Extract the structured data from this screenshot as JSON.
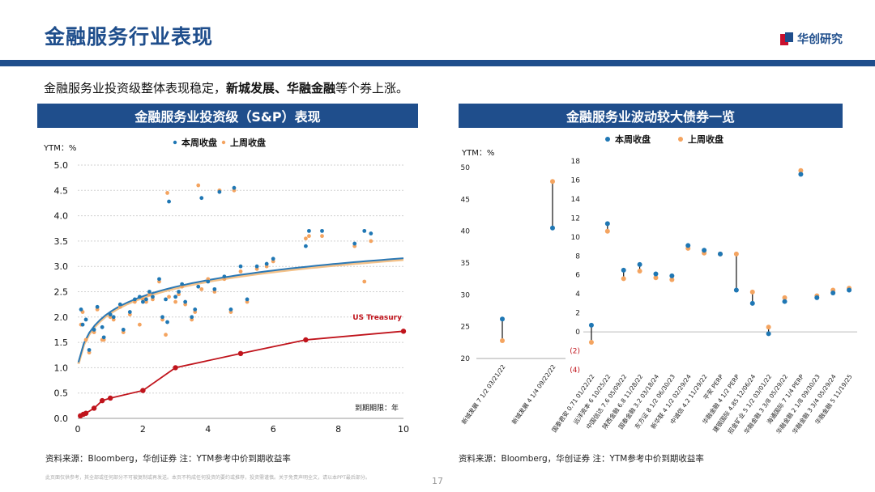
{
  "header": {
    "title": "金融服务行业表现",
    "logo_text": "华创研究",
    "subtitle_pre": "金融服务业投资级整体表现稳定，",
    "subtitle_bold": "新城发展、华融金融",
    "subtitle_post": "等个券上涨。"
  },
  "colors": {
    "accent": "#1f4e8c",
    "this_week": "#1f77b4",
    "last_week": "#f4a460",
    "treasury": "#c0141c"
  },
  "left_panel": {
    "title": "金融服务业投资级（S&P）表现",
    "source": "资料来源：Bloomberg，华创证券      注：YTM参考中价到期收益率"
  },
  "right_panel": {
    "title": "金融服务业波动较大债券一览",
    "source": "资料来源：Bloomberg，华创证券      注：YTM参考中价到期收益率"
  },
  "footer": {
    "disclaimer": "此页面仅供参考，其全部或任何部分不可被复制或再发送。本页不构成任何投资的要约或推荐，投资需谨慎。关于免责声明全文，请以本PPT最后部分。",
    "page": "17"
  },
  "chart_data": [
    {
      "type": "scatter",
      "title": "金融服务业投资级（S&P）表现",
      "ylabel": "YTM：%",
      "xlabel": "到期期限：年",
      "xlim": [
        0,
        10
      ],
      "ylim": [
        0,
        5
      ],
      "x_ticks": [
        "0",
        "2",
        "4",
        "6",
        "8",
        "10"
      ],
      "y_ticks": [
        "0.0",
        "0.5",
        "1.0",
        "1.5",
        "2.0",
        "2.5",
        "3.0",
        "3.5",
        "4.0",
        "4.5",
        "5.0"
      ],
      "legend": [
        "本周收盘",
        "上周收盘"
      ],
      "annotation": "US Treasury",
      "series": [
        {
          "name": "本周收盘",
          "points": [
            [
              0.1,
              2.15
            ],
            [
              0.15,
              1.85
            ],
            [
              0.25,
              1.95
            ],
            [
              0.35,
              1.35
            ],
            [
              0.5,
              1.75
            ],
            [
              0.6,
              2.2
            ],
            [
              0.75,
              1.8
            ],
            [
              0.8,
              1.6
            ],
            [
              1.0,
              2.05
            ],
            [
              1.1,
              2.0
            ],
            [
              1.3,
              2.25
            ],
            [
              1.4,
              1.75
            ],
            [
              1.6,
              2.1
            ],
            [
              1.75,
              2.35
            ],
            [
              1.9,
              2.4
            ],
            [
              2.0,
              2.3
            ],
            [
              2.1,
              2.35
            ],
            [
              2.2,
              2.5
            ],
            [
              2.3,
              2.4
            ],
            [
              2.5,
              2.75
            ],
            [
              2.6,
              2.0
            ],
            [
              2.7,
              2.35
            ],
            [
              2.75,
              1.9
            ],
            [
              2.8,
              4.28
            ],
            [
              3.0,
              2.4
            ],
            [
              3.1,
              2.5
            ],
            [
              3.2,
              2.65
            ],
            [
              3.3,
              2.3
            ],
            [
              3.5,
              2.0
            ],
            [
              3.6,
              2.15
            ],
            [
              3.7,
              2.6
            ],
            [
              3.8,
              4.35
            ],
            [
              4.0,
              2.7
            ],
            [
              4.2,
              2.55
            ],
            [
              4.35,
              4.47
            ],
            [
              4.5,
              2.8
            ],
            [
              4.7,
              2.15
            ],
            [
              4.8,
              4.55
            ],
            [
              5.0,
              3.0
            ],
            [
              5.2,
              2.35
            ],
            [
              5.5,
              3.0
            ],
            [
              5.8,
              3.05
            ],
            [
              6.0,
              3.15
            ],
            [
              7.0,
              3.4
            ],
            [
              7.1,
              3.7
            ],
            [
              7.5,
              3.7
            ],
            [
              8.5,
              3.45
            ],
            [
              8.8,
              3.7
            ],
            [
              9.0,
              3.65
            ]
          ]
        },
        {
          "name": "上周收盘",
          "points": [
            [
              0.1,
              1.85
            ],
            [
              0.15,
              2.1
            ],
            [
              0.25,
              1.55
            ],
            [
              0.35,
              1.3
            ],
            [
              0.5,
              1.7
            ],
            [
              0.6,
              2.15
            ],
            [
              0.75,
              1.55
            ],
            [
              0.8,
              1.55
            ],
            [
              1.0,
              2.0
            ],
            [
              1.1,
              1.95
            ],
            [
              1.3,
              2.2
            ],
            [
              1.4,
              1.7
            ],
            [
              1.6,
              2.05
            ],
            [
              1.75,
              2.3
            ],
            [
              1.9,
              1.85
            ],
            [
              2.0,
              2.35
            ],
            [
              2.1,
              2.3
            ],
            [
              2.2,
              2.45
            ],
            [
              2.3,
              2.35
            ],
            [
              2.5,
              2.7
            ],
            [
              2.6,
              1.95
            ],
            [
              2.7,
              1.65
            ],
            [
              2.75,
              4.45
            ],
            [
              2.8,
              2.4
            ],
            [
              3.0,
              2.3
            ],
            [
              3.1,
              2.45
            ],
            [
              3.2,
              2.6
            ],
            [
              3.3,
              2.25
            ],
            [
              3.5,
              1.95
            ],
            [
              3.6,
              2.1
            ],
            [
              3.7,
              4.6
            ],
            [
              3.8,
              2.55
            ],
            [
              4.0,
              2.75
            ],
            [
              4.2,
              2.5
            ],
            [
              4.35,
              4.5
            ],
            [
              4.5,
              2.75
            ],
            [
              4.7,
              2.1
            ],
            [
              4.8,
              4.5
            ],
            [
              5.0,
              2.9
            ],
            [
              5.2,
              2.3
            ],
            [
              5.5,
              2.95
            ],
            [
              5.8,
              3.0
            ],
            [
              6.0,
              3.1
            ],
            [
              7.0,
              3.55
            ],
            [
              7.1,
              3.6
            ],
            [
              7.5,
              3.6
            ],
            [
              8.5,
              3.4
            ],
            [
              8.8,
              2.7
            ],
            [
              9.0,
              3.5
            ]
          ]
        },
        {
          "name": "US Treasury",
          "points": [
            [
              0.08,
              0.05
            ],
            [
              0.17,
              0.08
            ],
            [
              0.25,
              0.1
            ],
            [
              0.5,
              0.2
            ],
            [
              0.75,
              0.35
            ],
            [
              1,
              0.4
            ],
            [
              2,
              0.55
            ],
            [
              3,
              1.0
            ],
            [
              5,
              1.28
            ],
            [
              7,
              1.55
            ],
            [
              10,
              1.72
            ]
          ]
        }
      ]
    },
    {
      "type": "scatter",
      "title": "金融服务业波动较大债券一览",
      "ylabel": "YTM：%",
      "legend": [
        "本周收盘",
        "上周收盘"
      ],
      "left_axis": {
        "ylim": [
          20,
          50
        ],
        "y_ticks": [
          "20",
          "25",
          "30",
          "35",
          "40",
          "45",
          "50"
        ],
        "categories": [
          "新城发展 7 1/2 03/21/22",
          "新城发展 4 1/4 09/22/22"
        ],
        "this_week": [
          26.2,
          40.5
        ],
        "last_week": [
          22.8,
          47.8
        ]
      },
      "right_axis": {
        "ylim": [
          -4,
          18
        ],
        "y_ticks": [
          "(4)",
          "(2)",
          "0",
          "2",
          "4",
          "6",
          "8",
          "10",
          "12",
          "14",
          "16",
          "18"
        ],
        "categories": [
          "国泰君安 0.71 01/22/22",
          "远洋资本 6 10/25/22",
          "中国信达 7.6 05/09/22",
          "陕西金融 6.8 11/28/22",
          "国泰金融 3.2 03/18/24",
          "东方证 8 1/2 06/30/23",
          "新华联 4 1/2 02/29/24",
          "中诚信 4.2 11/29/22",
          "平安 PERP",
          "华融金融 4 1/2 PERP",
          "建银国际 4.85 12/06/24",
          "招金矿业 5 1/2 03/01/22",
          "华融金融 3 3/8 05/29/22",
          "海通国际 7 1/4 PERP",
          "华融金融 2 1/8 09/30/23",
          "华融金融 3 3/4 05/29/24",
          "华融金融 5 11/19/25"
        ],
        "this_week": [
          0.7,
          11.4,
          6.5,
          7.1,
          6.1,
          5.9,
          9.1,
          8.6,
          8.2,
          4.4,
          3.0,
          -0.2,
          3.2,
          16.6,
          3.6,
          4.1,
          4.4
        ],
        "last_week": [
          -1.1,
          10.6,
          5.6,
          6.4,
          5.7,
          5.5,
          8.8,
          8.3,
          8.2,
          8.2,
          4.2,
          0.5,
          3.6,
          17.0,
          3.8,
          4.4,
          4.6
        ]
      }
    }
  ]
}
